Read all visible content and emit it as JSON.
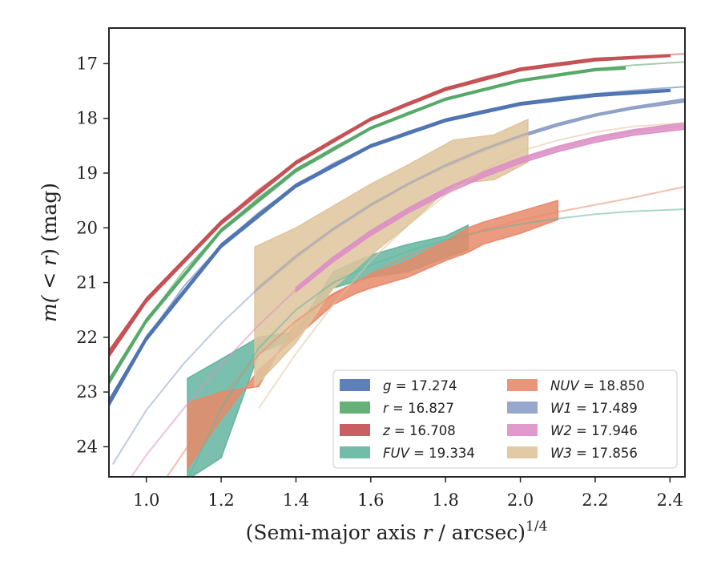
{
  "chart_data": {
    "type": "line",
    "title": "",
    "xlabel_main": "(Semi-major axis ",
    "xlabel_var": "r",
    "xlabel_rest": " / arcsec)",
    "xlabel_sup": "1/4",
    "ylabel_pre": "m(",
    "ylabel_mid": " < r",
    "ylabel_post": ") (mag)",
    "xlim": [
      0.9,
      2.44
    ],
    "ylim": [
      24.55,
      16.35
    ],
    "y_inverted": true,
    "xticks": [
      1.0,
      1.2,
      1.4,
      1.6,
      1.8,
      2.0,
      2.2,
      2.4
    ],
    "xtick_labels": [
      "1.0",
      "1.2",
      "1.4",
      "1.6",
      "1.8",
      "2.0",
      "2.2",
      "2.4"
    ],
    "yticks": [
      17,
      18,
      19,
      20,
      21,
      22,
      23,
      24
    ],
    "ytick_labels": [
      "17",
      "18",
      "19",
      "20",
      "21",
      "22",
      "23",
      "24"
    ],
    "legend_position": "lower-right",
    "series": [
      {
        "name": "g = 17.274",
        "var": "g",
        "value": "= 17.274",
        "color": "#4c72b0",
        "model_x": [
          0.9,
          1.0,
          1.1,
          1.2,
          1.3,
          1.4,
          1.5,
          1.6,
          1.7,
          1.8,
          1.9,
          2.0,
          2.1,
          2.2,
          2.3,
          2.44
        ],
        "model_y": [
          23.2,
          22.02,
          21.07,
          20.32,
          19.72,
          19.23,
          18.82,
          18.5,
          18.24,
          18.03,
          17.86,
          17.72,
          17.62,
          17.55,
          17.49,
          17.42
        ],
        "band_x": [
          0.9,
          1.0,
          1.2,
          1.4,
          1.6,
          1.8,
          2.0,
          2.2,
          2.4
        ],
        "band_lo": [
          23.26,
          22.06,
          20.36,
          19.26,
          18.53,
          18.06,
          17.76,
          17.6,
          17.51
        ],
        "band_hi": [
          23.14,
          21.98,
          20.29,
          19.2,
          18.48,
          18.01,
          17.71,
          17.55,
          17.47
        ]
      },
      {
        "name": "r = 16.827",
        "var": "r",
        "value": "= 16.827",
        "color": "#55a868",
        "model_x": [
          0.9,
          1.0,
          1.1,
          1.2,
          1.3,
          1.4,
          1.5,
          1.6,
          1.7,
          1.8,
          1.9,
          2.0,
          2.1,
          2.2,
          2.3,
          2.44
        ],
        "model_y": [
          22.82,
          21.7,
          20.78,
          20.05,
          19.44,
          18.95,
          18.53,
          18.18,
          17.89,
          17.65,
          17.46,
          17.31,
          17.19,
          17.1,
          17.03,
          16.97
        ],
        "band_x": [
          0.9,
          1.0,
          1.2,
          1.4,
          1.6,
          1.8,
          2.0,
          2.2,
          2.28
        ],
        "band_lo": [
          22.86,
          21.73,
          20.08,
          18.98,
          18.2,
          17.67,
          17.33,
          17.13,
          17.1
        ],
        "band_hi": [
          22.76,
          21.66,
          20.02,
          18.92,
          18.16,
          17.63,
          17.29,
          17.09,
          17.06
        ]
      },
      {
        "name": "z = 16.708",
        "var": "z",
        "value": "= 16.708",
        "color": "#c44e52",
        "model_x": [
          0.9,
          1.0,
          1.1,
          1.2,
          1.3,
          1.4,
          1.5,
          1.6,
          1.7,
          1.8,
          1.9,
          2.0,
          2.1,
          2.2,
          2.3,
          2.44
        ],
        "model_y": [
          22.3,
          21.32,
          20.6,
          19.9,
          19.3,
          18.81,
          18.38,
          18.01,
          17.71,
          17.46,
          17.25,
          17.1,
          16.99,
          16.92,
          16.87,
          16.82
        ],
        "band_x": [
          0.9,
          1.0,
          1.2,
          1.4,
          1.6,
          1.8,
          2.0,
          2.2,
          2.4
        ],
        "band_lo": [
          22.36,
          21.36,
          19.94,
          18.84,
          18.04,
          17.49,
          17.13,
          16.95,
          16.87
        ],
        "band_hi": [
          22.24,
          21.28,
          19.87,
          18.78,
          17.99,
          17.44,
          17.08,
          16.9,
          16.84
        ]
      },
      {
        "name": "FUV = 19.334",
        "var": "FUV",
        "value": "= 19.334",
        "color": "#64b5a0",
        "model_x": [
          1.11,
          1.2,
          1.3,
          1.4,
          1.5,
          1.6,
          1.7,
          1.8,
          1.9,
          2.0,
          2.1,
          2.2,
          2.3,
          2.44
        ],
        "model_y": [
          24.6,
          23.3,
          22.2,
          21.5,
          21.0,
          20.68,
          20.43,
          20.22,
          20.06,
          19.93,
          19.83,
          19.75,
          19.7,
          19.66
        ],
        "band_x": [
          1.11,
          1.2,
          1.3,
          1.4,
          1.5,
          1.6,
          1.7,
          1.8,
          1.86
        ],
        "band_lo": [
          24.6,
          24.2,
          22.3,
          22.0,
          21.1,
          20.9,
          20.8,
          20.55,
          20.4
        ],
        "band_hi": [
          22.75,
          22.4,
          22.0,
          21.9,
          20.8,
          20.5,
          20.3,
          20.15,
          19.95
        ]
      },
      {
        "name": "NUV = 18.850",
        "var": "NUV",
        "value": "= 18.850",
        "color": "#e8896a",
        "model_x": [
          1.05,
          1.1,
          1.2,
          1.3,
          1.4,
          1.5,
          1.6,
          1.7,
          1.8,
          1.9,
          2.0,
          2.1,
          2.2,
          2.3,
          2.44
        ],
        "model_y": [
          24.6,
          24.1,
          23.1,
          22.32,
          21.7,
          21.22,
          20.83,
          20.51,
          20.25,
          20.04,
          19.86,
          19.71,
          19.58,
          19.45,
          19.25
        ],
        "band_x": [
          1.11,
          1.2,
          1.3,
          1.4,
          1.5,
          1.56,
          1.6,
          1.7,
          1.8,
          1.86,
          1.9,
          2.0,
          2.1
        ],
        "band_lo": [
          24.4,
          23.5,
          22.6,
          22.0,
          21.4,
          21.2,
          21.1,
          20.9,
          20.6,
          20.45,
          20.3,
          20.1,
          19.85
        ],
        "band_hi": [
          23.2,
          23.0,
          22.9,
          21.7,
          21.2,
          21.0,
          20.85,
          20.6,
          20.25,
          20.0,
          19.9,
          19.7,
          19.5
        ]
      },
      {
        "name": "W1 = 17.489",
        "var": "W1",
        "value": "= 17.489",
        "color": "#8c9ec7",
        "model_x": [
          0.91,
          1.0,
          1.1,
          1.2,
          1.3,
          1.4,
          1.5,
          1.6,
          1.7,
          1.8,
          1.9,
          2.0,
          2.1,
          2.2,
          2.3,
          2.44
        ],
        "model_y": [
          24.32,
          23.33,
          22.48,
          21.75,
          21.1,
          20.52,
          20.02,
          19.58,
          19.2,
          18.86,
          18.57,
          18.32,
          18.11,
          17.93,
          17.8,
          17.66
        ],
        "band_x": [
          1.29,
          1.4,
          1.5,
          1.6,
          1.7,
          1.8,
          1.9,
          2.0,
          2.1,
          2.2,
          2.3,
          2.44
        ],
        "band_lo": [
          21.18,
          20.56,
          20.05,
          19.61,
          19.22,
          18.89,
          18.6,
          18.35,
          18.14,
          17.96,
          17.83,
          17.7
        ],
        "band_hi": [
          21.12,
          20.5,
          20.0,
          19.56,
          19.18,
          18.84,
          18.55,
          18.3,
          18.09,
          17.92,
          17.79,
          17.64
        ]
      },
      {
        "name": "W2 = 17.946",
        "var": "W2",
        "value": "= 17.946",
        "color": "#dd8fc6",
        "model_x": [
          0.96,
          1.0,
          1.1,
          1.2,
          1.3,
          1.4,
          1.5,
          1.6,
          1.7,
          1.8,
          1.9,
          2.0,
          2.1,
          2.2,
          2.3,
          2.44
        ],
        "model_y": [
          24.55,
          24.15,
          23.3,
          22.5,
          21.78,
          21.13,
          20.57,
          20.09,
          19.68,
          19.32,
          19.02,
          18.76,
          18.55,
          18.38,
          18.25,
          18.13
        ],
        "band_x": [
          1.4,
          1.5,
          1.6,
          1.7,
          1.8,
          1.9,
          2.0,
          2.1,
          2.2,
          2.3,
          2.44
        ],
        "band_lo": [
          21.17,
          20.62,
          20.14,
          19.73,
          19.38,
          19.08,
          18.82,
          18.61,
          18.44,
          18.31,
          18.2
        ],
        "band_hi": [
          21.09,
          20.53,
          20.05,
          19.64,
          19.28,
          18.98,
          18.72,
          18.51,
          18.34,
          18.21,
          18.08
        ]
      },
      {
        "name": "W3 = 17.856",
        "var": "W3",
        "value": "= 17.856",
        "color": "#dfc49c",
        "model_x": [
          1.3,
          1.4,
          1.5,
          1.6,
          1.7,
          1.8,
          1.9,
          2.0,
          2.1,
          2.2,
          2.3,
          2.44
        ],
        "model_y": [
          23.3,
          22.3,
          21.4,
          20.6,
          19.95,
          19.4,
          18.95,
          18.6,
          18.4,
          18.25,
          18.15,
          18.08
        ],
        "band_x": [
          1.29,
          1.4,
          1.5,
          1.6,
          1.7,
          1.82,
          1.93,
          2.02
        ],
        "band_lo": [
          22.9,
          22.1,
          21.1,
          20.5,
          19.95,
          19.2,
          19.12,
          18.8
        ],
        "band_hi": [
          20.35,
          20.0,
          19.6,
          19.2,
          18.85,
          18.4,
          18.3,
          18.02
        ]
      }
    ]
  }
}
